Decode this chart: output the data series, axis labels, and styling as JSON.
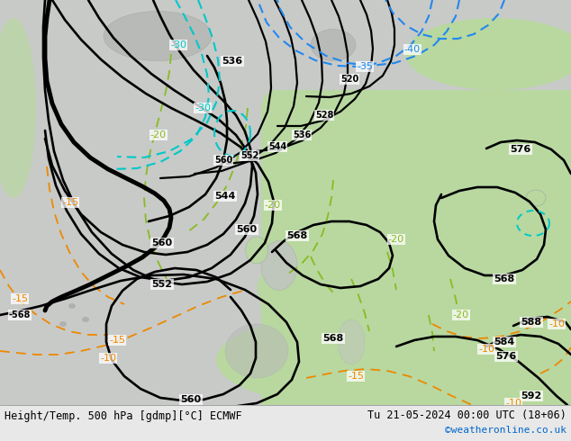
{
  "title_left": "Height/Temp. 500 hPa [gdmp][°C] ECMWF",
  "title_right": "Tu 21-05-2024 00:00 UTC (18+06)",
  "credit": "©weatheronline.co.uk",
  "credit_color": "#0066cc",
  "fig_width": 6.34,
  "fig_height": 4.9,
  "dpi": 100,
  "bg_ocean": "#c8cac8",
  "bg_land_green": "#b8d8a0",
  "bg_land_gray": "#c8c8c8",
  "footer_bg": "#e8e8e8",
  "footer_text_color": "#000000",
  "black_lw": 1.8,
  "black_lw_thick": 3.2,
  "colored_lw": 1.4
}
